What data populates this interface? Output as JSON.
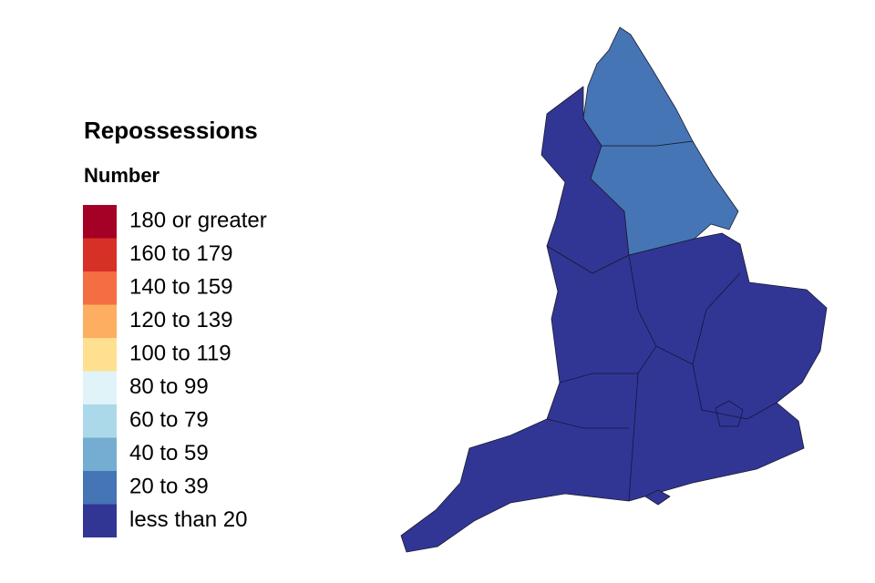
{
  "legend": {
    "title": "Repossessions",
    "subtitle": "Number",
    "items": [
      {
        "label": "180 or greater",
        "color": "#a50026"
      },
      {
        "label": "160 to 179",
        "color": "#d73027"
      },
      {
        "label": "140 to 159",
        "color": "#f46d43"
      },
      {
        "label": "120 to 139",
        "color": "#fdae61"
      },
      {
        "label": "100 to 119",
        "color": "#fee090"
      },
      {
        "label": "80 to 99",
        "color": "#e0f3f8"
      },
      {
        "label": "60 to 79",
        "color": "#abd9e9"
      },
      {
        "label": "40 to 59",
        "color": "#74add1"
      },
      {
        "label": "20 to 39",
        "color": "#4575b4"
      },
      {
        "label": "less than 20",
        "color": "#313695"
      }
    ]
  }
}
